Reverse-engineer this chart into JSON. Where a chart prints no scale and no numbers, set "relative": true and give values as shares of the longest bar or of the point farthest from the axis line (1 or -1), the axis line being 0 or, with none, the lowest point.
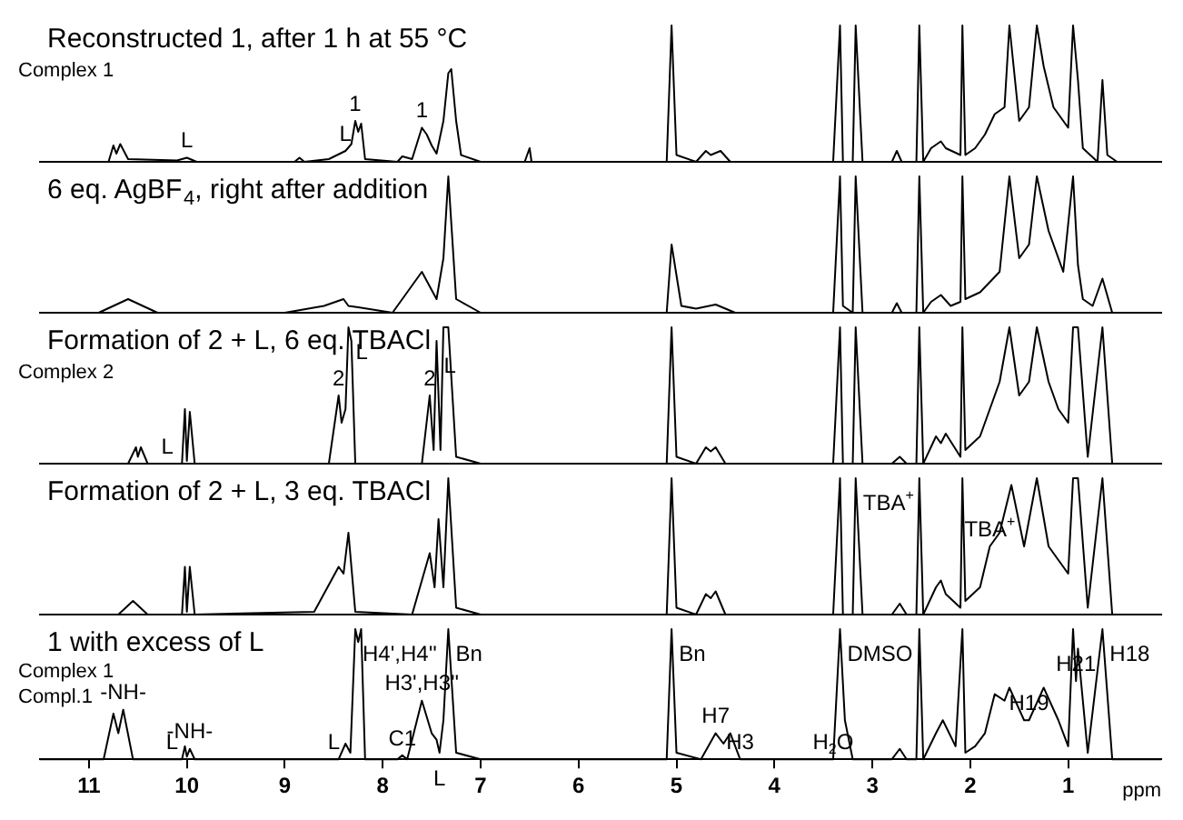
{
  "chart_data": [
    {
      "type": "line",
      "title": "Reconstructed 1, after 1 h at 55 °C",
      "relative": true,
      "color": "#000000",
      "xlim": [
        11.5,
        0.05
      ],
      "tick_labels": false,
      "grid": false,
      "legend": false,
      "x": [
        11.5,
        10.8,
        10.75,
        10.72,
        10.68,
        10.6,
        10.1,
        10.0,
        9.9,
        8.9,
        8.85,
        8.8,
        8.55,
        8.38,
        8.32,
        8.28,
        8.25,
        8.22,
        8.18,
        7.85,
        7.8,
        7.7,
        7.6,
        7.55,
        7.5,
        7.45,
        7.38,
        7.33,
        7.3,
        7.25,
        7.2,
        7.0,
        6.55,
        6.5,
        6.48,
        5.1,
        5.05,
        5.0,
        4.8,
        4.7,
        4.65,
        4.55,
        4.45,
        3.4,
        3.33,
        3.3,
        3.2,
        3.17,
        3.1,
        2.8,
        2.75,
        2.7,
        2.55,
        2.52,
        2.48,
        2.4,
        2.3,
        2.25,
        2.1,
        2.08,
        2.05,
        1.95,
        1.85,
        1.75,
        1.65,
        1.6,
        1.5,
        1.4,
        1.32,
        1.25,
        1.15,
        1.0,
        0.95,
        0.9,
        0.85,
        0.7,
        0.65,
        0.6,
        0.5,
        0.05
      ],
      "values": [
        0,
        0,
        0.12,
        0.06,
        0.13,
        0.02,
        0.01,
        0.03,
        0,
        0,
        0.03,
        0,
        0.02,
        0.08,
        0.13,
        0.3,
        0.22,
        0.28,
        0.02,
        0,
        0.04,
        0.02,
        0.25,
        0.2,
        0.12,
        0.06,
        0.3,
        0.65,
        0.68,
        0.3,
        0.05,
        0,
        0,
        0.1,
        0,
        0,
        1,
        0.05,
        0,
        0.08,
        0.05,
        0.08,
        0,
        0,
        1,
        0,
        0,
        1,
        0,
        0,
        0.08,
        0,
        0,
        1,
        0,
        0.1,
        0.15,
        0.1,
        0.05,
        1,
        0.05,
        0.1,
        0.2,
        0.35,
        0.4,
        1,
        0.3,
        0.4,
        1,
        0.7,
        0.4,
        0.25,
        1,
        0.6,
        0.1,
        0,
        0.6,
        0.05,
        0,
        0
      ],
      "annotations": [
        "Complex 1",
        {
          "text": "L",
          "x": 10.0,
          "y": 0.03
        },
        {
          "text": "L",
          "x": 8.38,
          "y": 0.08
        },
        {
          "text": "1",
          "x": 8.28,
          "y": 0.3
        },
        {
          "text": "1",
          "x": 7.6,
          "y": 0.25
        }
      ]
    },
    {
      "type": "line",
      "title": "6 eq. AgBF$_{4}$, right after addition",
      "relative": true,
      "color": "#000000",
      "xlim": [
        11.5,
        0.05
      ],
      "tick_labels": false,
      "grid": false,
      "legend": false,
      "x": [
        11.5,
        10.9,
        10.6,
        10.3,
        9.0,
        8.6,
        8.4,
        8.35,
        8.25,
        7.9,
        7.6,
        7.45,
        7.38,
        7.33,
        7.25,
        7.0,
        5.1,
        5.05,
        4.95,
        4.8,
        4.6,
        4.4,
        3.4,
        3.33,
        3.3,
        3.2,
        3.17,
        3.1,
        2.8,
        2.75,
        2.7,
        2.55,
        2.52,
        2.48,
        2.4,
        2.3,
        2.2,
        2.1,
        2.08,
        2.05,
        1.9,
        1.7,
        1.6,
        1.5,
        1.4,
        1.32,
        1.2,
        1.05,
        0.95,
        0.9,
        0.85,
        0.75,
        0.65,
        0.55,
        0.05
      ],
      "values": [
        0,
        0,
        0.1,
        0,
        0,
        0.05,
        0.1,
        0.05,
        0.04,
        0,
        0.3,
        0.1,
        0.4,
        1,
        0.1,
        0,
        0,
        0.5,
        0.05,
        0.03,
        0.06,
        0,
        0,
        1,
        0.05,
        0,
        1,
        0,
        0,
        0.07,
        0,
        0,
        1,
        0,
        0.08,
        0.13,
        0.05,
        0.08,
        1,
        0.1,
        0.15,
        0.3,
        1,
        0.4,
        0.5,
        1,
        0.6,
        0.3,
        1,
        0.35,
        0.1,
        0.05,
        0.25,
        0,
        0
      ]
    },
    {
      "type": "line",
      "title": "Formation of 2 + L, 6 eq. TBACl",
      "relative": true,
      "color": "#000000",
      "xlim": [
        11.5,
        0.05
      ],
      "tick_labels": false,
      "grid": false,
      "legend": false,
      "x": [
        11.5,
        10.6,
        10.52,
        10.5,
        10.47,
        10.4,
        10.2,
        10.05,
        10.02,
        10.0,
        9.97,
        9.92,
        8.55,
        8.45,
        8.42,
        8.38,
        8.35,
        8.32,
        8.28,
        7.6,
        7.52,
        7.48,
        7.45,
        7.41,
        7.38,
        7.33,
        7.25,
        7.0,
        5.1,
        5.05,
        5.0,
        4.8,
        4.7,
        4.65,
        4.6,
        4.5,
        3.4,
        3.33,
        3.3,
        3.2,
        3.17,
        3.1,
        2.8,
        2.72,
        2.65,
        2.55,
        2.52,
        2.48,
        2.35,
        2.3,
        2.25,
        2.1,
        2.08,
        2.05,
        1.9,
        1.8,
        1.7,
        1.6,
        1.5,
        1.4,
        1.32,
        1.2,
        1.1,
        1.0,
        0.95,
        0.9,
        0.8,
        0.65,
        0.55,
        0.05
      ],
      "values": [
        0,
        0,
        0.12,
        0.05,
        0.12,
        0,
        0,
        0,
        0.4,
        0.02,
        0.38,
        0,
        0,
        0.5,
        0.3,
        0.4,
        1,
        0.9,
        0,
        0,
        0.5,
        0.1,
        0.9,
        0.1,
        1,
        1,
        0.05,
        0,
        0,
        1,
        0.05,
        0,
        0.12,
        0.09,
        0.12,
        0,
        0,
        1,
        0,
        0,
        1,
        0,
        0,
        0.05,
        0,
        0,
        1,
        0,
        0.2,
        0.15,
        0.22,
        0.05,
        1,
        0.1,
        0.2,
        0.4,
        0.6,
        1,
        0.5,
        0.6,
        1,
        0.6,
        0.4,
        0.3,
        1,
        1,
        0.05,
        1,
        0,
        0
      ],
      "annotations": [
        "Complex 2",
        {
          "text": "L",
          "x": 10.2,
          "y": 0
        },
        {
          "text": "2",
          "x": 8.45,
          "y": 0.5
        },
        {
          "text": "L",
          "x": 8.35,
          "y": 1
        },
        {
          "text": "2",
          "x": 7.52,
          "y": 0.5
        },
        {
          "text": "L",
          "x": 7.45,
          "y": 0.9
        }
      ]
    },
    {
      "type": "line",
      "title": "Formation of 2 + L, 3 eq. TBACl",
      "relative": true,
      "color": "#000000",
      "xlim": [
        11.5,
        0.05
      ],
      "tick_labels": false,
      "grid": false,
      "legend": false,
      "x": [
        11.5,
        10.7,
        10.55,
        10.4,
        10.05,
        10.02,
        10.0,
        9.97,
        9.92,
        8.7,
        8.45,
        8.4,
        8.35,
        8.28,
        7.7,
        7.52,
        7.47,
        7.43,
        7.38,
        7.33,
        7.25,
        7.0,
        5.1,
        5.05,
        5.0,
        4.8,
        4.7,
        4.65,
        4.6,
        4.5,
        3.4,
        3.33,
        3.3,
        3.2,
        3.17,
        3.1,
        2.8,
        2.72,
        2.65,
        2.55,
        2.52,
        2.48,
        2.35,
        2.3,
        2.25,
        2.1,
        2.08,
        2.05,
        1.9,
        1.8,
        1.7,
        1.58,
        1.45,
        1.32,
        1.2,
        1.1,
        1.0,
        0.95,
        0.9,
        0.8,
        0.65,
        0.55,
        0.05
      ],
      "values": [
        0,
        0,
        0.1,
        0,
        0,
        0.35,
        0.02,
        0.35,
        0,
        0.02,
        0.35,
        0.3,
        0.6,
        0.02,
        0,
        0.45,
        0.2,
        0.7,
        0.2,
        1,
        0.05,
        0,
        0,
        1,
        0.05,
        0,
        0.15,
        0.12,
        0.17,
        0,
        0,
        1,
        0,
        0,
        1,
        0,
        0,
        0.08,
        0,
        0,
        1,
        0,
        0.2,
        0.25,
        0.15,
        0.05,
        1,
        0.1,
        0.2,
        0.5,
        0.6,
        0.95,
        0.5,
        1,
        0.5,
        0.4,
        0.3,
        1,
        1,
        0.05,
        1,
        0,
        0
      ],
      "annotations": [
        {
          "text": "TBA$^{+}$",
          "x": 3.17,
          "y": 1
        },
        {
          "text": "TBA$^{+}$",
          "x": 1.8,
          "y": 0.5
        }
      ]
    },
    {
      "type": "line",
      "title": "1 with excess of L",
      "relative": true,
      "color": "#000000",
      "xlim": [
        11.5,
        0.05
      ],
      "xticks": [
        11,
        10,
        9,
        8,
        7,
        6,
        5,
        4,
        3,
        2,
        1
      ],
      "xlabel": "ppm",
      "tick_labels": "x",
      "grid": false,
      "legend": false,
      "x": [
        11.5,
        10.85,
        10.75,
        10.7,
        10.65,
        10.55,
        10.15,
        10.05,
        10.02,
        10.0,
        9.97,
        9.92,
        8.5,
        8.45,
        8.38,
        8.33,
        8.28,
        8.25,
        8.22,
        8.18,
        7.85,
        7.8,
        7.75,
        7.6,
        7.5,
        7.45,
        7.42,
        7.38,
        7.33,
        7.25,
        7.0,
        5.1,
        5.05,
        5.0,
        4.75,
        4.6,
        4.52,
        4.45,
        4.35,
        3.4,
        3.33,
        3.28,
        3.2,
        2.8,
        2.72,
        2.65,
        2.55,
        2.52,
        2.48,
        2.35,
        2.28,
        2.15,
        2.08,
        2.05,
        1.95,
        1.85,
        1.75,
        1.65,
        1.6,
        1.45,
        1.4,
        1.25,
        1.1,
        1.0,
        0.95,
        0.92,
        0.9,
        0.8,
        0.65,
        0.55,
        0.05
      ],
      "values": [
        0,
        0,
        0.35,
        0.2,
        0.38,
        0,
        0,
        0,
        0.1,
        0.02,
        0.08,
        0,
        0,
        0,
        0.12,
        0.05,
        1,
        0.9,
        1,
        0,
        0,
        0.03,
        0,
        0.45,
        0.2,
        0.15,
        0.05,
        0.3,
        1,
        0.05,
        0,
        0,
        1,
        0.05,
        0,
        0.2,
        0.12,
        0.2,
        0,
        0,
        1,
        0.3,
        0,
        0,
        0.08,
        0,
        0,
        1,
        0,
        0.2,
        0.3,
        0.1,
        1,
        0.05,
        0.1,
        0.2,
        0.5,
        0.45,
        0.55,
        0.3,
        0.3,
        0.55,
        0.3,
        0.1,
        1,
        0.6,
        0.85,
        0.05,
        1,
        0,
        0
      ],
      "annotations": [
        "Complex 1",
        "Compl.1",
        {
          "text": "-NH-",
          "x": 10.65,
          "y": 0.38
        },
        {
          "text": "L",
          "x": 10.15,
          "y": 0
        },
        {
          "text": "-NH-",
          "x": 9.97,
          "y": 0.08
        },
        {
          "text": "L",
          "x": 8.5,
          "y": 0
        },
        {
          "text": "H4',H4''",
          "x": 8.28,
          "y": 1
        },
        {
          "text": "H3',H3''",
          "x": 7.6,
          "y": 0.45
        },
        {
          "text": "C1",
          "x": 7.8,
          "y": 0.03
        },
        {
          "text": "L",
          "x": 7.42,
          "y": 0.05
        },
        {
          "text": "Bn",
          "x": 7.33,
          "y": 1
        },
        {
          "text": "Bn",
          "x": 5.05,
          "y": 1
        },
        {
          "text": "H7",
          "x": 4.6,
          "y": 0.2
        },
        {
          "text": "H3",
          "x": 4.35,
          "y": 0
        },
        {
          "text": "H$_{2}$O",
          "x": 3.4,
          "y": 0
        },
        {
          "text": "DMSO",
          "x": 3.33,
          "y": 1
        },
        {
          "text": "H19",
          "x": 1.4,
          "y": 0.3
        },
        {
          "text": "H21",
          "x": 0.92,
          "y": 0.6
        },
        {
          "text": "H18",
          "x": 0.65,
          "y": 1
        }
      ]
    }
  ]
}
